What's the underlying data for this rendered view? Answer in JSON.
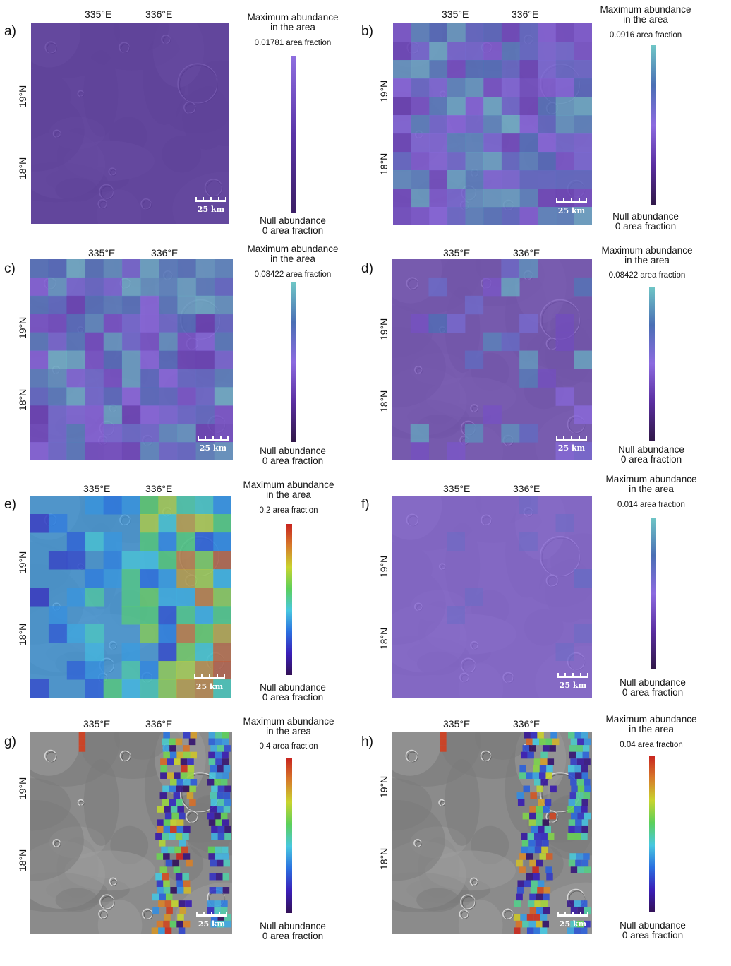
{
  "colorbar_title": "Maximum  abundance\nin the area",
  "null_label": "Null abundance\n0 area fraction",
  "lon_labels": [
    "335°E",
    "336°E"
  ],
  "lat_labels": [
    "19°N",
    "18°N"
  ],
  "scale_label": "25 km",
  "panels": [
    {
      "id": "a",
      "label": "a)",
      "max_label": "0.01781 area fraction",
      "colormap": "purple",
      "pattern": "uniform"
    },
    {
      "id": "b",
      "label": "b)",
      "max_label": "0.0916 area fraction",
      "colormap": "purple-teal",
      "pattern": "full"
    },
    {
      "id": "c",
      "label": "c)",
      "max_label": "0.08422 area fraction",
      "colormap": "purple-teal",
      "pattern": "full"
    },
    {
      "id": "d",
      "label": "d)",
      "max_label": "0.08422 area fraction",
      "colormap": "purple-teal",
      "pattern": "sparse"
    },
    {
      "id": "e",
      "label": "e)",
      "max_label": "0.2 area fraction",
      "colormap": "rainbow",
      "pattern": "east"
    },
    {
      "id": "f",
      "label": "f)",
      "max_label": "0.014 area fraction",
      "colormap": "purple-teal",
      "pattern": "uniform"
    },
    {
      "id": "g",
      "label": "g)",
      "max_label": "0.4 area fraction",
      "colormap": "rainbow",
      "pattern": "strip"
    },
    {
      "id": "h",
      "label": "h)",
      "max_label": "0.04 area fraction",
      "colormap": "rainbow",
      "pattern": "strip"
    }
  ],
  "colors": {
    "purple": [
      "#3c1f66",
      "#5a35a8",
      "#8f6fe0"
    ],
    "purple-teal": [
      "#301848",
      "#5a2ea0",
      "#8c6be0",
      "#4a6fb5",
      "#6fc6c6"
    ],
    "rainbow": [
      "#331155",
      "#3a1eb8",
      "#2a6fe0",
      "#48c8e0",
      "#5cd05a",
      "#c9d42e",
      "#d77a2a",
      "#c8231f"
    ]
  }
}
